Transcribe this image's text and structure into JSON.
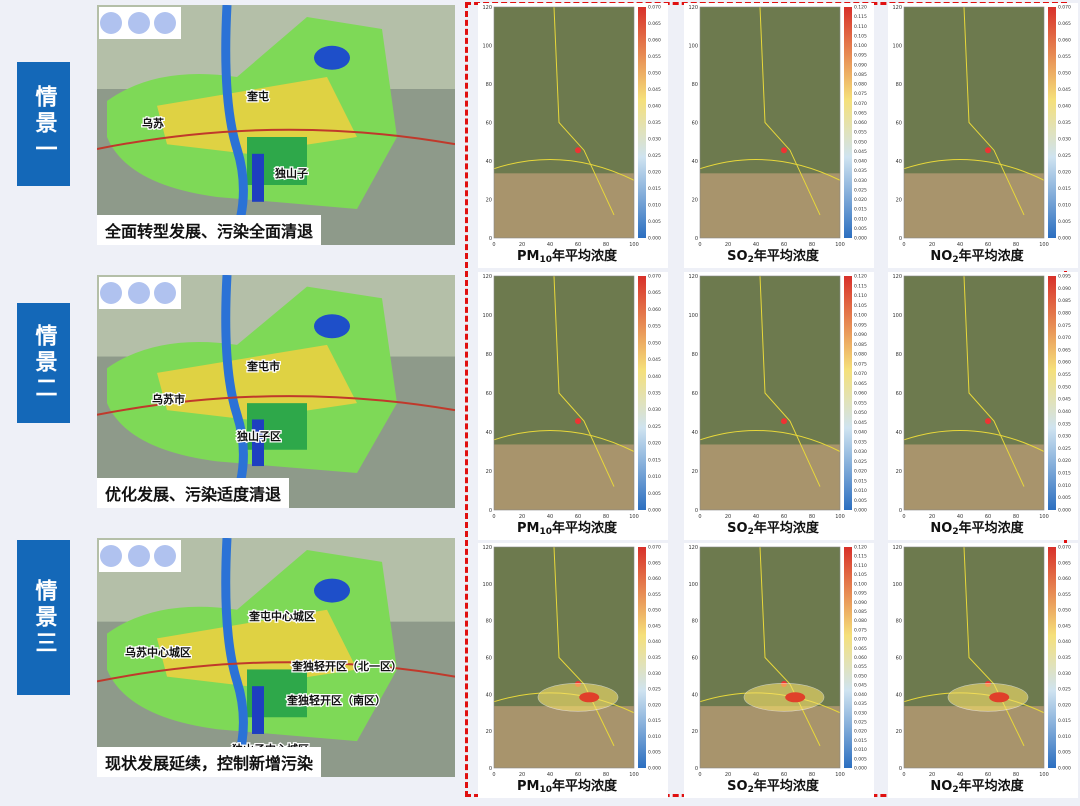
{
  "scenarios": [
    {
      "label": "情景一",
      "caption": "全面转型发展、污染全面清退",
      "map_labels": [
        "奎屯",
        "乌苏",
        "独山子"
      ],
      "plots": [
        {
          "title": {
            "base": "PM",
            "sub": "10",
            "rest": "年平均浓度"
          },
          "colorbar": [
            "0.000",
            "0.005",
            "0.010",
            "0.015",
            "0.020",
            "0.025",
            "0.030",
            "0.035",
            "0.040",
            "0.045",
            "0.050",
            "0.055",
            "0.060",
            "0.065",
            "0.070"
          ]
        },
        {
          "title": {
            "base": "SO",
            "sub": "2",
            "rest": "年平均浓度"
          },
          "colorbar": [
            "0.000",
            "0.005",
            "0.010",
            "0.015",
            "0.020",
            "0.025",
            "0.030",
            "0.035",
            "0.040",
            "0.045",
            "0.050",
            "0.055",
            "0.060",
            "0.065",
            "0.070",
            "0.075",
            "0.080",
            "0.085",
            "0.090",
            "0.095",
            "0.100",
            "0.105",
            "0.110",
            "0.115",
            "0.120"
          ]
        },
        {
          "title": {
            "base": "NO",
            "sub": "2",
            "rest": "年平均浓度"
          },
          "colorbar": [
            "0.000",
            "0.005",
            "0.010",
            "0.015",
            "0.020",
            "0.025",
            "0.030",
            "0.035",
            "0.040",
            "0.045",
            "0.050",
            "0.055",
            "0.060",
            "0.065",
            "0.070"
          ]
        }
      ]
    },
    {
      "label": "情景二",
      "caption": "优化发展、污染适度清退",
      "map_labels": [
        "奎屯市",
        "乌苏市",
        "独山子区"
      ],
      "plots": [
        {
          "title": {
            "base": "PM",
            "sub": "10",
            "rest": "年平均浓度"
          },
          "colorbar": [
            "0.000",
            "0.005",
            "0.010",
            "0.015",
            "0.020",
            "0.025",
            "0.030",
            "0.035",
            "0.040",
            "0.045",
            "0.050",
            "0.055",
            "0.060",
            "0.065",
            "0.070"
          ]
        },
        {
          "title": {
            "base": "SO",
            "sub": "2",
            "rest": "年平均浓度"
          },
          "colorbar": [
            "0.000",
            "0.005",
            "0.010",
            "0.015",
            "0.020",
            "0.025",
            "0.030",
            "0.035",
            "0.040",
            "0.045",
            "0.050",
            "0.055",
            "0.060",
            "0.065",
            "0.070",
            "0.075",
            "0.080",
            "0.085",
            "0.090",
            "0.095",
            "0.100",
            "0.105",
            "0.110",
            "0.115",
            "0.120"
          ]
        },
        {
          "title": {
            "base": "NO",
            "sub": "2",
            "rest": "年平均浓度"
          },
          "colorbar": [
            "0.000",
            "0.005",
            "0.010",
            "0.015",
            "0.020",
            "0.025",
            "0.030",
            "0.035",
            "0.040",
            "0.045",
            "0.050",
            "0.055",
            "0.060",
            "0.065",
            "0.070",
            "0.075",
            "0.080",
            "0.085",
            "0.090",
            "0.095"
          ]
        }
      ]
    },
    {
      "label": "情景三",
      "caption": "现状发展延续，控制新增污染",
      "map_labels": [
        "奎屯中心城区",
        "乌苏中心城区",
        "奎独轻开区（北一区）",
        "奎独轻开区（南区）",
        "独山子中心城区"
      ],
      "plots": [
        {
          "title": {
            "base": "PM",
            "sub": "10",
            "rest": "年平均浓度"
          },
          "colorbar": [
            "0.000",
            "0.005",
            "0.010",
            "0.015",
            "0.020",
            "0.025",
            "0.030",
            "0.035",
            "0.040",
            "0.045",
            "0.050",
            "0.055",
            "0.060",
            "0.065",
            "0.070"
          ]
        },
        {
          "title": {
            "base": "SO",
            "sub": "2",
            "rest": "年平均浓度"
          },
          "colorbar": [
            "0.000",
            "0.005",
            "0.010",
            "0.015",
            "0.020",
            "0.025",
            "0.030",
            "0.035",
            "0.040",
            "0.045",
            "0.050",
            "0.055",
            "0.060",
            "0.065",
            "0.070",
            "0.075",
            "0.080",
            "0.085",
            "0.090",
            "0.095",
            "0.100",
            "0.105",
            "0.110",
            "0.115",
            "0.120"
          ]
        },
        {
          "title": {
            "base": "NO",
            "sub": "2",
            "rest": "年平均浓度"
          },
          "colorbar": [
            "0.000",
            "0.005",
            "0.010",
            "0.015",
            "0.020",
            "0.025",
            "0.030",
            "0.035",
            "0.040",
            "0.045",
            "0.050",
            "0.055",
            "0.060",
            "0.065",
            "0.070"
          ]
        }
      ]
    }
  ],
  "plot_axes": {
    "x_ticks": [
      0,
      20,
      40,
      60,
      80,
      100
    ],
    "y_ticks": [
      0,
      20,
      40,
      60,
      80,
      100,
      120
    ]
  }
}
